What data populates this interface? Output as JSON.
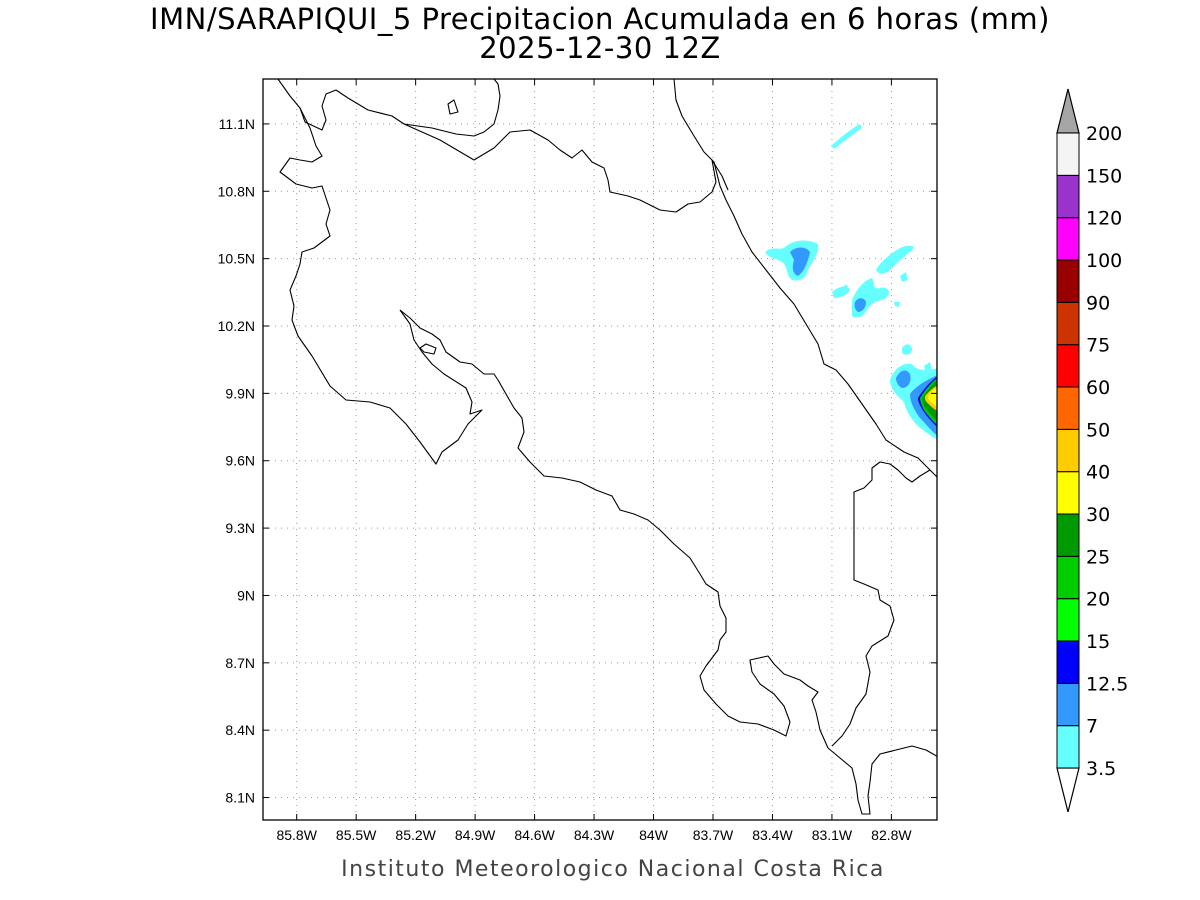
{
  "title": "IMN/SARAPIQUI_5 Precipitacion Acumulada en 6 horas (mm)",
  "subtitle": "2025-12-30 12Z",
  "footer": "Instituto Meteorologico Nacional Costa Rica",
  "map": {
    "lon_range": [
      -85.97,
      -82.57
    ],
    "lat_range": [
      8.0,
      11.3
    ],
    "x_ticks": [
      {
        "lon": -85.8,
        "label": "85.8W"
      },
      {
        "lon": -85.5,
        "label": "85.5W"
      },
      {
        "lon": -85.2,
        "label": "85.2W"
      },
      {
        "lon": -84.9,
        "label": "84.9W"
      },
      {
        "lon": -84.6,
        "label": "84.6W"
      },
      {
        "lon": -84.3,
        "label": "84.3W"
      },
      {
        "lon": -84.0,
        "label": "84W"
      },
      {
        "lon": -83.7,
        "label": "83.7W"
      },
      {
        "lon": -83.4,
        "label": "83.4W"
      },
      {
        "lon": -83.1,
        "label": "83.1W"
      },
      {
        "lon": -82.8,
        "label": "82.8W"
      }
    ],
    "y_ticks": [
      {
        "lat": 11.1,
        "label": "11.1N"
      },
      {
        "lat": 10.8,
        "label": "10.8N"
      },
      {
        "lat": 10.5,
        "label": "10.5N"
      },
      {
        "lat": 10.2,
        "label": "10.2N"
      },
      {
        "lat": 9.9,
        "label": "9.9N"
      },
      {
        "lat": 9.6,
        "label": "9.6N"
      },
      {
        "lat": 9.3,
        "label": "9.3N"
      },
      {
        "lat": 9.0,
        "label": "9N"
      },
      {
        "lat": 8.7,
        "label": "8.7N"
      },
      {
        "lat": 8.4,
        "label": "8.4N"
      },
      {
        "lat": 8.1,
        "label": "8.1N"
      }
    ],
    "grid": true
  },
  "colorbar": {
    "levels": [
      {
        "label": "3.5",
        "color": "#66ffff"
      },
      {
        "label": "7",
        "color": "#3399ff"
      },
      {
        "label": "12.5",
        "color": "#0000ff"
      },
      {
        "label": "15",
        "color": "#00ff00"
      },
      {
        "label": "20",
        "color": "#00cc00"
      },
      {
        "label": "25",
        "color": "#009900"
      },
      {
        "label": "30",
        "color": "#ffff00"
      },
      {
        "label": "40",
        "color": "#ffcc00"
      },
      {
        "label": "50",
        "color": "#ff6600"
      },
      {
        "label": "60",
        "color": "#ff0000"
      },
      {
        "label": "75",
        "color": "#cc3300"
      },
      {
        "label": "90",
        "color": "#990000"
      },
      {
        "label": "100",
        "color": "#ff00ff"
      },
      {
        "label": "120",
        "color": "#9933cc"
      },
      {
        "label": "150",
        "color": "#f4f4f4"
      },
      {
        "label": "200",
        "color": "#a6a6a6"
      }
    ],
    "under_color": "#ffffff",
    "over_color": "#a6a6a6"
  },
  "precip_areas": [
    {
      "lon": -83.0,
      "lat": 11.08,
      "mm": 5
    },
    {
      "lon": -83.2,
      "lat": 10.52,
      "mm": 8
    },
    {
      "lon": -82.85,
      "lat": 10.33,
      "mm": 6
    },
    {
      "lon": -82.65,
      "lat": 9.9,
      "mm": 10
    },
    {
      "lon": -82.6,
      "lat": 9.88,
      "mm": 35
    }
  ]
}
